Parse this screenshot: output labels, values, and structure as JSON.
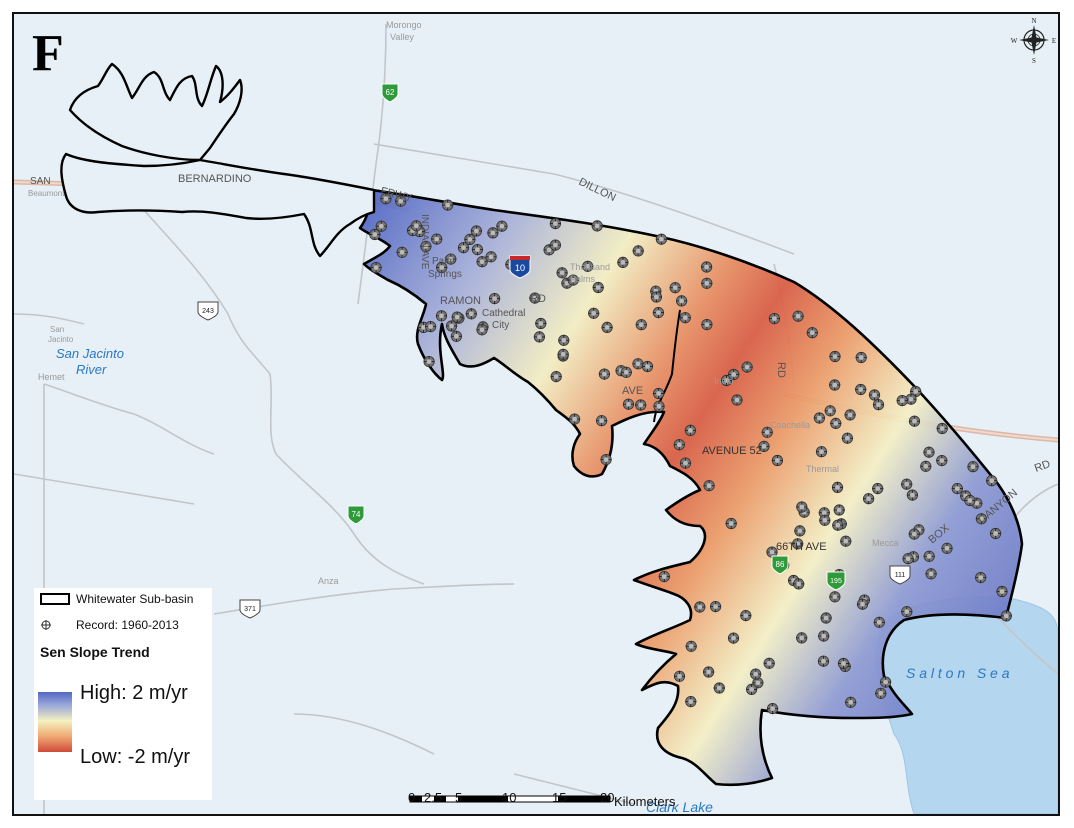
{
  "panel_label": "F",
  "legend": {
    "boundary_label": "Whitewater Sub-basin",
    "record_label": "Record: 1960-2013",
    "trend_title": "Sen Slope Trend",
    "high_label": "High: 2 m/yr",
    "low_label": "Low: -2 m/yr",
    "ramp_colors": [
      "#5468c4",
      "#f4f0c0",
      "#d04a3a"
    ]
  },
  "north_arrow": {
    "n": "N",
    "s": "S",
    "e": "E",
    "w": "W"
  },
  "scale_bar": {
    "ticks": [
      "0",
      "2.5",
      "5",
      "10",
      "15",
      "20"
    ],
    "unit": "Kilometers"
  },
  "places": {
    "morongo": "Morongo",
    "valley": "Valley",
    "san": "SAN",
    "bernardino": "BERNARDINO",
    "frwy": "FRWY",
    "dillon": "DILLON",
    "indian_ave": "INDIAN AVE",
    "palm": "Palm",
    "springs": "Springs",
    "ramon": "RAMON",
    "rd": "RD",
    "cathedral": "Cathedral",
    "city": "City",
    "thousand": "Thousand",
    "palms": "Palms",
    "ave_48": "AVE",
    "avenue_52": "AVENUE 52",
    "indio": "Indio",
    "coachella": "Coachella",
    "thermal": "Thermal",
    "mecca": "Mecca",
    "sixty_sixth": "66TH AVE",
    "box": "BOX",
    "canyon": "CANYON",
    "rd2": "RD",
    "rd3": "RD",
    "san_jacinto_small": "San",
    "jacinto_small": "Jacinto",
    "hemet": "Hemet",
    "anza": "Anza",
    "san_jacinto_river_1": "San Jacinto",
    "san_jacinto_river_2": "River",
    "salton_sea": "S a l t o n   S e a",
    "clark_lake": "Clark Lake",
    "beaumont": "Beaumont"
  },
  "shields": {
    "sr62": "62",
    "i10": "10",
    "us243": "243",
    "sr74": "74",
    "sr371": "371",
    "sr86": "86",
    "sr195": "195",
    "us111": "111"
  },
  "wells_count": 180
}
